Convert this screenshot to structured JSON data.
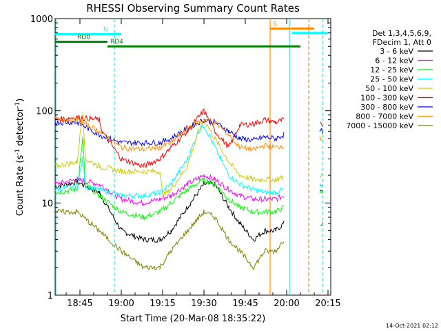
{
  "chart_data": {
    "type": "line",
    "title": "RHESSI Observing Summary Count Rates",
    "xlabel": "Start Time (20-Mar-08 18:35:22)",
    "ylabel_main": "Count Rate (s",
    "ylabel_sup1": "-1",
    "ylabel_mid": " detector",
    "ylabel_sup2": "-1",
    "ylabel_end": ")",
    "yscale": "log",
    "ylim": [
      1,
      1000
    ],
    "xlim_minutes": [
      36,
      136
    ],
    "x_ticks": [
      {
        "t": 45,
        "label": "18:45"
      },
      {
        "t": 60,
        "label": "19:00"
      },
      {
        "t": 75,
        "label": "19:15"
      },
      {
        "t": 90,
        "label": "19:30"
      },
      {
        "t": 105,
        "label": "19:45"
      },
      {
        "t": 120,
        "label": "20:00"
      },
      {
        "t": 135,
        "label": "20:15"
      }
    ],
    "y_ticks": [
      {
        "v": 1,
        "label": "1"
      },
      {
        "v": 10,
        "label": "10"
      },
      {
        "v": 100,
        "label": "100"
      },
      {
        "v": 1000,
        "label": "1000"
      }
    ],
    "legend_header": [
      "Det 1,3,4,5,6,9,",
      "FDecim 1, Att 0"
    ],
    "series": [
      {
        "name": "3 - 6 keV",
        "color": "#000000",
        "points": [
          [
            36,
            15
          ],
          [
            44,
            17
          ],
          [
            52,
            13
          ],
          [
            60,
            5
          ],
          [
            68,
            4
          ],
          [
            74,
            4
          ],
          [
            78,
            5
          ],
          [
            84,
            9
          ],
          [
            90,
            16
          ],
          [
            94,
            16
          ],
          [
            99,
            9
          ],
          [
            103,
            6
          ],
          [
            108,
            4
          ],
          [
            112,
            5
          ],
          [
            116,
            5
          ],
          [
            119,
            6
          ],
          [
            126,
            0
          ],
          [
            131,
            0
          ],
          [
            132,
            14
          ],
          [
            133,
            14
          ]
        ]
      },
      {
        "name": "6 - 12 keV",
        "color": "#ff00ff",
        "points": [
          [
            36,
            16
          ],
          [
            44,
            18
          ],
          [
            52,
            16
          ],
          [
            60,
            11
          ],
          [
            68,
            10
          ],
          [
            74,
            11
          ],
          [
            78,
            12
          ],
          [
            84,
            16
          ],
          [
            90,
            20
          ],
          [
            94,
            18
          ],
          [
            99,
            14
          ],
          [
            103,
            12
          ],
          [
            108,
            11
          ],
          [
            112,
            11
          ],
          [
            116,
            11
          ],
          [
            119,
            12
          ],
          [
            126,
            0
          ],
          [
            131,
            0
          ],
          [
            132,
            16
          ],
          [
            133,
            16
          ]
        ]
      },
      {
        "name": "12 - 25 keV",
        "color": "#00ff00",
        "points": [
          [
            36,
            13
          ],
          [
            44,
            14
          ],
          [
            46,
            50
          ],
          [
            47,
            16
          ],
          [
            52,
            12
          ],
          [
            60,
            8
          ],
          [
            68,
            7
          ],
          [
            74,
            8
          ],
          [
            78,
            10
          ],
          [
            84,
            14
          ],
          [
            90,
            18
          ],
          [
            94,
            16
          ],
          [
            99,
            11
          ],
          [
            103,
            9
          ],
          [
            108,
            8
          ],
          [
            112,
            8
          ],
          [
            116,
            8
          ],
          [
            119,
            9
          ],
          [
            126,
            0
          ],
          [
            131,
            0
          ],
          [
            132,
            13
          ],
          [
            133,
            13
          ]
        ]
      },
      {
        "name": "25 - 50 keV",
        "color": "#00ffff",
        "points": [
          [
            36,
            14
          ],
          [
            44,
            15
          ],
          [
            46,
            30
          ],
          [
            47,
            15
          ],
          [
            52,
            14
          ],
          [
            60,
            12
          ],
          [
            68,
            12
          ],
          [
            74,
            13
          ],
          [
            78,
            16
          ],
          [
            84,
            30
          ],
          [
            88,
            60
          ],
          [
            90,
            70
          ],
          [
            94,
            40
          ],
          [
            99,
            20
          ],
          [
            103,
            16
          ],
          [
            108,
            14
          ],
          [
            112,
            13
          ],
          [
            116,
            13
          ],
          [
            119,
            14
          ],
          [
            126,
            0
          ],
          [
            131,
            0
          ],
          [
            132,
            15
          ],
          [
            133,
            15
          ]
        ]
      },
      {
        "name": "50 - 100 keV",
        "color": "#cccc00",
        "points": [
          [
            36,
            25
          ],
          [
            44,
            28
          ],
          [
            46,
            100
          ],
          [
            47,
            30
          ],
          [
            52,
            25
          ],
          [
            60,
            22
          ],
          [
            68,
            22
          ],
          [
            74,
            22
          ],
          [
            75,
            12
          ],
          [
            78,
            14
          ],
          [
            84,
            25
          ],
          [
            88,
            60
          ],
          [
            90,
            80
          ],
          [
            94,
            50
          ],
          [
            99,
            28
          ],
          [
            103,
            20
          ],
          [
            108,
            18
          ],
          [
            112,
            18
          ],
          [
            116,
            18
          ],
          [
            119,
            19
          ],
          [
            126,
            0
          ],
          [
            131,
            0
          ],
          [
            132,
            20
          ],
          [
            133,
            20
          ]
        ]
      },
      {
        "name": "100 - 300 keV",
        "color": "#ff0000",
        "points": [
          [
            36,
            80
          ],
          [
            44,
            85
          ],
          [
            52,
            80
          ],
          [
            53,
            60
          ],
          [
            60,
            30
          ],
          [
            68,
            25
          ],
          [
            74,
            30
          ],
          [
            78,
            40
          ],
          [
            84,
            60
          ],
          [
            88,
            85
          ],
          [
            90,
            100
          ],
          [
            94,
            60
          ],
          [
            99,
            40
          ],
          [
            103,
            70
          ],
          [
            108,
            72
          ],
          [
            112,
            80
          ],
          [
            116,
            75
          ],
          [
            119,
            80
          ],
          [
            126,
            0
          ],
          [
            131,
            0
          ],
          [
            132,
            70
          ],
          [
            133,
            70
          ]
        ]
      },
      {
        "name": "300 - 800 keV",
        "color": "#0000ff",
        "points": [
          [
            36,
            75
          ],
          [
            44,
            75
          ],
          [
            52,
            55
          ],
          [
            60,
            45
          ],
          [
            68,
            45
          ],
          [
            74,
            45
          ],
          [
            78,
            50
          ],
          [
            84,
            65
          ],
          [
            90,
            80
          ],
          [
            94,
            75
          ],
          [
            99,
            60
          ],
          [
            103,
            50
          ],
          [
            108,
            48
          ],
          [
            112,
            52
          ],
          [
            116,
            50
          ],
          [
            119,
            55
          ],
          [
            126,
            0
          ],
          [
            131,
            0
          ],
          [
            132,
            60
          ],
          [
            133,
            60
          ]
        ]
      },
      {
        "name": "800 - 7000 keV",
        "color": "#ff8c00",
        "points": [
          [
            36,
            80
          ],
          [
            44,
            80
          ],
          [
            52,
            60
          ],
          [
            60,
            40
          ],
          [
            68,
            38
          ],
          [
            74,
            40
          ],
          [
            78,
            45
          ],
          [
            84,
            65
          ],
          [
            90,
            80
          ],
          [
            94,
            75
          ],
          [
            99,
            55
          ],
          [
            103,
            40
          ],
          [
            108,
            38
          ],
          [
            112,
            42
          ],
          [
            116,
            40
          ],
          [
            119,
            42
          ],
          [
            126,
            0
          ],
          [
            131,
            0
          ],
          [
            132,
            50
          ],
          [
            133,
            50
          ]
        ]
      },
      {
        "name": "7000 - 15000 keV",
        "color": "#808000",
        "points": [
          [
            36,
            8
          ],
          [
            44,
            8
          ],
          [
            52,
            5
          ],
          [
            60,
            3
          ],
          [
            68,
            2
          ],
          [
            74,
            2
          ],
          [
            78,
            3
          ],
          [
            84,
            5
          ],
          [
            90,
            8
          ],
          [
            94,
            7
          ],
          [
            99,
            4
          ],
          [
            103,
            3
          ],
          [
            108,
            2
          ],
          [
            112,
            3
          ],
          [
            116,
            3
          ],
          [
            119,
            4
          ],
          [
            126,
            0
          ],
          [
            131,
            0
          ],
          [
            132,
            6
          ],
          [
            133,
            6
          ]
        ]
      }
    ],
    "flag_lines": [
      {
        "label": "N",
        "color": "#00ffff",
        "t_start": 36,
        "t_end": 60,
        "level": 680
      },
      {
        "label": "RD0",
        "color": "#008000",
        "t_start": 36,
        "t_end": 55,
        "level": 560
      },
      {
        "label": "RD4",
        "color": "#008000",
        "t_start": 55,
        "t_end": 125,
        "level": 500
      },
      {
        "label": "S",
        "color": "#ff8c00",
        "t_start": 114,
        "t_end": 130,
        "level": 780
      },
      {
        "label": "",
        "color": "#00ffff",
        "t_start": 122,
        "t_end": 135,
        "level": 700
      }
    ],
    "vertical_lines": [
      {
        "t": 36.3,
        "color": "#00ffff",
        "dash": false
      },
      {
        "t": 57.5,
        "color": "#00ffff",
        "dash": true
      },
      {
        "t": 114,
        "color": "#ff8c00",
        "dash": false
      },
      {
        "t": 121,
        "color": "#00ffff",
        "dash": false
      },
      {
        "t": 128,
        "color": "#ff8c00",
        "dash": true
      },
      {
        "t": 133,
        "color": "#00ffff",
        "dash": true
      }
    ]
  },
  "footer": {
    "timestamp": "14-Oct-2021 02:12"
  }
}
